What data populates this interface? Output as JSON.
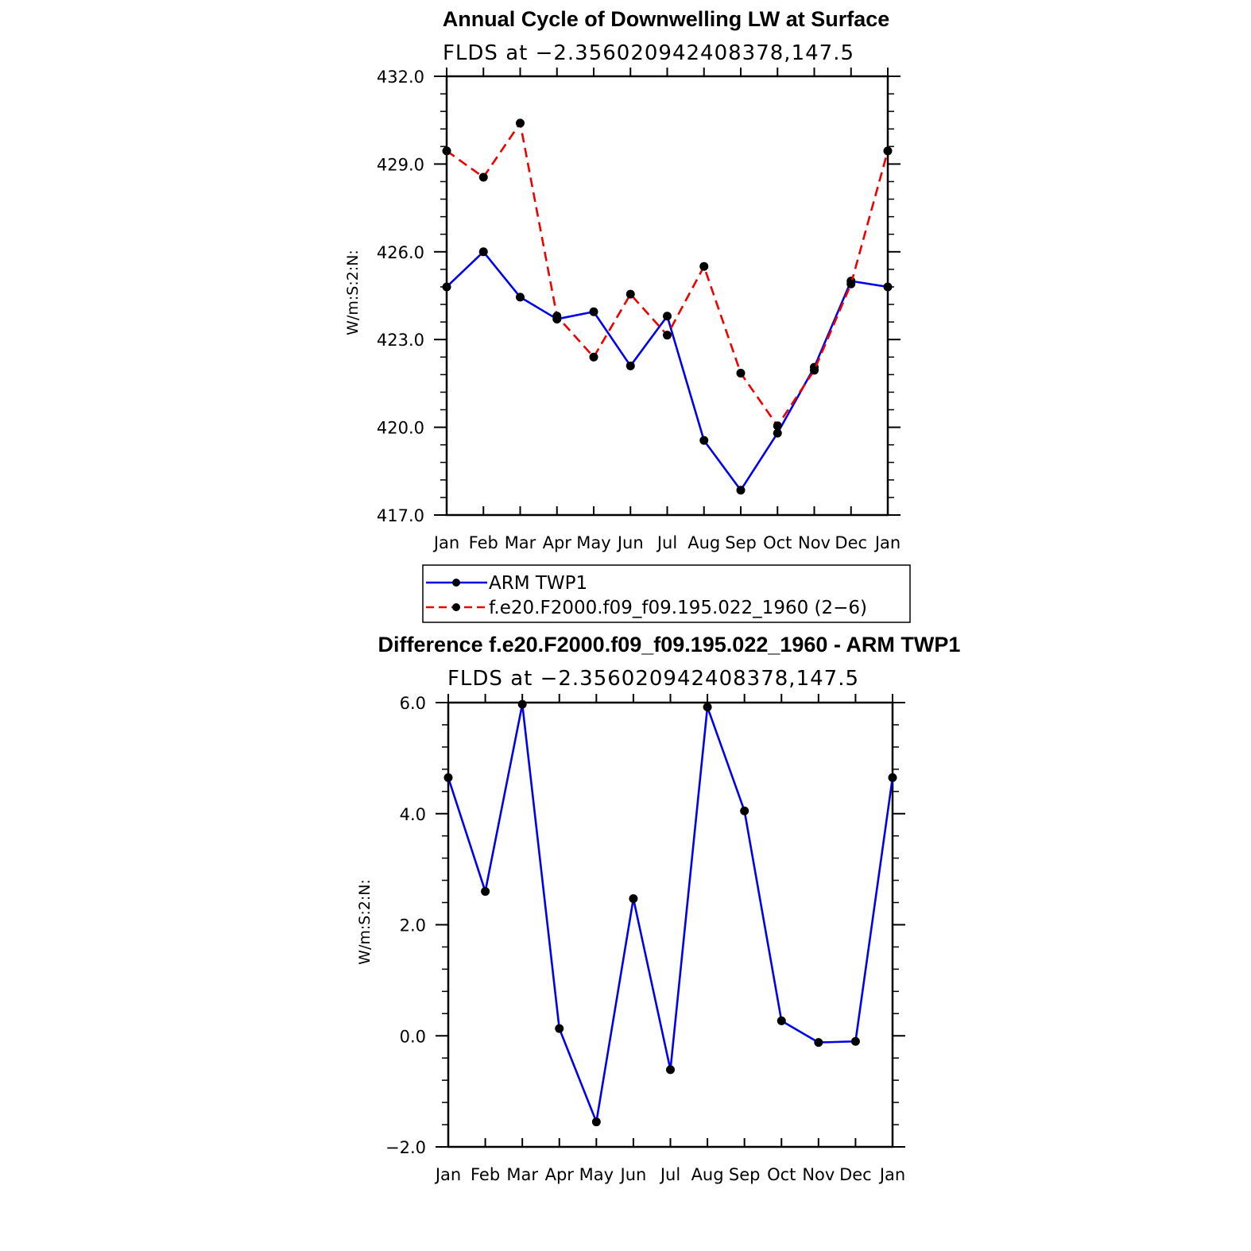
{
  "chart_data": [
    {
      "type": "line",
      "title": "Annual Cycle of Downwelling LW at Surface",
      "subtitle": "FLDS at −2.356020942408378,147.5",
      "ylabel": "W/m:S:2:N:",
      "categories": [
        "Jan",
        "Feb",
        "Mar",
        "Apr",
        "May",
        "Jun",
        "Jul",
        "Aug",
        "Sep",
        "Oct",
        "Nov",
        "Dec",
        "Jan"
      ],
      "ylim": [
        417.0,
        432.0
      ],
      "yticks": [
        "432.0",
        "429.0",
        "426.0",
        "423.0",
        "420.0",
        "417.0"
      ],
      "grid": false,
      "series": [
        {
          "name": "ARM TWP1",
          "color": "#0000ee",
          "dash": "solid",
          "values": [
            424.8,
            426.0,
            424.45,
            423.7,
            423.95,
            422.1,
            423.8,
            419.55,
            417.85,
            419.8,
            422.05,
            425.0,
            424.8
          ]
        },
        {
          "name": "f.e20.F2000.f09_f09.195.022_1960 (2−6)",
          "color": "#ee0000",
          "dash": "dashed",
          "values": [
            429.45,
            428.55,
            430.4,
            423.8,
            422.4,
            424.55,
            423.15,
            425.5,
            421.85,
            420.05,
            421.95,
            424.9,
            429.45
          ]
        }
      ],
      "legend": "below"
    },
    {
      "type": "line",
      "title": "Difference f.e20.F2000.f09_f09.195.022_1960 - ARM TWP1",
      "subtitle": "FLDS at −2.356020942408378,147.5",
      "ylabel": "W/m:S:2:N:",
      "categories": [
        "Jan",
        "Feb",
        "Mar",
        "Apr",
        "May",
        "Jun",
        "Jul",
        "Aug",
        "Sep",
        "Oct",
        "Nov",
        "Dec",
        "Jan"
      ],
      "ylim": [
        -2.0,
        6.0
      ],
      "yticks": [
        "6.0",
        "4.0",
        "2.0",
        "0.0",
        "−2.0"
      ],
      "grid": false,
      "series": [
        {
          "color": "#0000ee",
          "dash": "solid",
          "values": [
            4.65,
            2.6,
            5.97,
            0.13,
            -1.55,
            2.47,
            -0.61,
            5.92,
            4.05,
            0.27,
            -0.12,
            -0.1,
            4.65
          ]
        }
      ]
    }
  ]
}
